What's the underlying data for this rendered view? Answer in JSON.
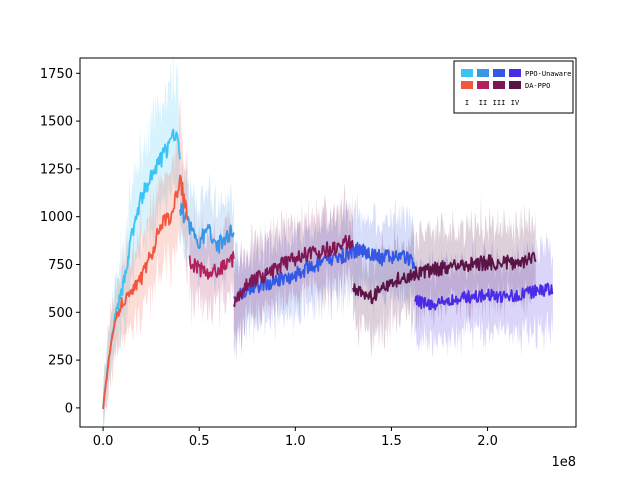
{
  "chart_data": {
    "type": "line",
    "title": "",
    "xlabel": "",
    "ylabel": "",
    "x_offset_label": "1e8",
    "xlim": [
      -0.12,
      2.46
    ],
    "ylim": [
      -100,
      1830
    ],
    "xticks": [
      0.0,
      0.5,
      1.0,
      1.5,
      2.0
    ],
    "xtick_labels": [
      "0.0",
      "0.5",
      "1.0",
      "1.5",
      "2.0"
    ],
    "yticks": [
      0,
      250,
      500,
      750,
      1000,
      1250,
      1500,
      1750
    ],
    "ytick_labels": [
      "0",
      "250",
      "500",
      "750",
      "1000",
      "1250",
      "1500",
      "1750"
    ],
    "grid": false,
    "legend": {
      "placement": "top-right",
      "rows": [
        {
          "label": "PPO-Unaware",
          "colors": [
            "#38c4f4",
            "#3c96e6",
            "#3458e4",
            "#4a2ce8"
          ]
        },
        {
          "label": "DA-PPO",
          "colors": [
            "#f0573e",
            "#b0215e",
            "#7f1654",
            "#5a1446"
          ]
        }
      ],
      "stage_labels": [
        "I",
        "II",
        "III",
        "IV"
      ]
    },
    "series": [
      {
        "name": "PPO-Unaware",
        "stage": "I",
        "color": "#38c4f4",
        "x": [
          0.0,
          0.03,
          0.06,
          0.1,
          0.15,
          0.2,
          0.25,
          0.3,
          0.35,
          0.38,
          0.4
        ],
        "y": [
          10,
          250,
          460,
          620,
          900,
          1100,
          1200,
          1300,
          1380,
          1450,
          1300
        ]
      },
      {
        "name": "PPO-Unaware",
        "stage": "II",
        "color": "#3c96e6",
        "x": [
          0.4,
          0.45,
          0.5,
          0.55,
          0.6,
          0.65,
          0.68
        ],
        "y": [
          1050,
          950,
          870,
          930,
          850,
          900,
          940
        ]
      },
      {
        "name": "PPO-Unaware",
        "stage": "III",
        "color": "#3458e4",
        "x": [
          0.68,
          0.75,
          0.85,
          0.95,
          1.05,
          1.15,
          1.25,
          1.35,
          1.45,
          1.55,
          1.62
        ],
        "y": [
          570,
          620,
          650,
          680,
          720,
          760,
          800,
          830,
          780,
          800,
          760
        ]
      },
      {
        "name": "PPO-Unaware",
        "stage": "IV",
        "color": "#4a2ce8",
        "x": [
          1.62,
          1.7,
          1.8,
          1.9,
          2.0,
          2.1,
          2.2,
          2.3,
          2.34
        ],
        "y": [
          560,
          540,
          560,
          580,
          590,
          580,
          600,
          620,
          610
        ]
      },
      {
        "name": "DA-PPO",
        "stage": "I",
        "color": "#f0573e",
        "x": [
          0.0,
          0.03,
          0.06,
          0.1,
          0.15,
          0.2,
          0.25,
          0.3,
          0.35,
          0.4,
          0.44
        ],
        "y": [
          0,
          250,
          450,
          560,
          600,
          680,
          800,
          950,
          1000,
          1200,
          1000
        ]
      },
      {
        "name": "DA-PPO",
        "stage": "II",
        "color": "#b0215e",
        "x": [
          0.45,
          0.5,
          0.55,
          0.6,
          0.65,
          0.68
        ],
        "y": [
          760,
          730,
          700,
          720,
          760,
          780
        ]
      },
      {
        "name": "DA-PPO",
        "stage": "III",
        "color": "#7f1654",
        "x": [
          0.68,
          0.75,
          0.85,
          0.95,
          1.05,
          1.15,
          1.25,
          1.3
        ],
        "y": [
          540,
          650,
          700,
          760,
          800,
          820,
          860,
          870
        ]
      },
      {
        "name": "DA-PPO",
        "stage": "IV",
        "color": "#5a1446",
        "x": [
          1.3,
          1.4,
          1.5,
          1.6,
          1.7,
          1.8,
          1.9,
          2.0,
          2.1,
          2.2,
          2.25
        ],
        "y": [
          620,
          580,
          660,
          700,
          720,
          740,
          750,
          760,
          760,
          770,
          780
        ]
      }
    ]
  }
}
